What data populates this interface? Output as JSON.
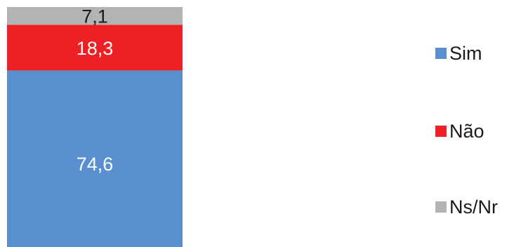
{
  "chart_data": {
    "type": "bar",
    "stacked": true,
    "categories": [
      ""
    ],
    "series": [
      {
        "name": "Sim",
        "values": [
          74.6
        ],
        "label": "74,6",
        "color": "#5a8fcf"
      },
      {
        "name": "Não",
        "values": [
          18.3
        ],
        "label": "18,3",
        "color": "#ee2025"
      },
      {
        "name": "Ns/Nr",
        "values": [
          7.1
        ],
        "label": "7,1",
        "color": "#b3b3b3"
      }
    ],
    "title": "",
    "xlabel": "",
    "ylabel": "",
    "ylim": [
      0,
      100
    ],
    "grid": false,
    "legend_position": "right"
  }
}
